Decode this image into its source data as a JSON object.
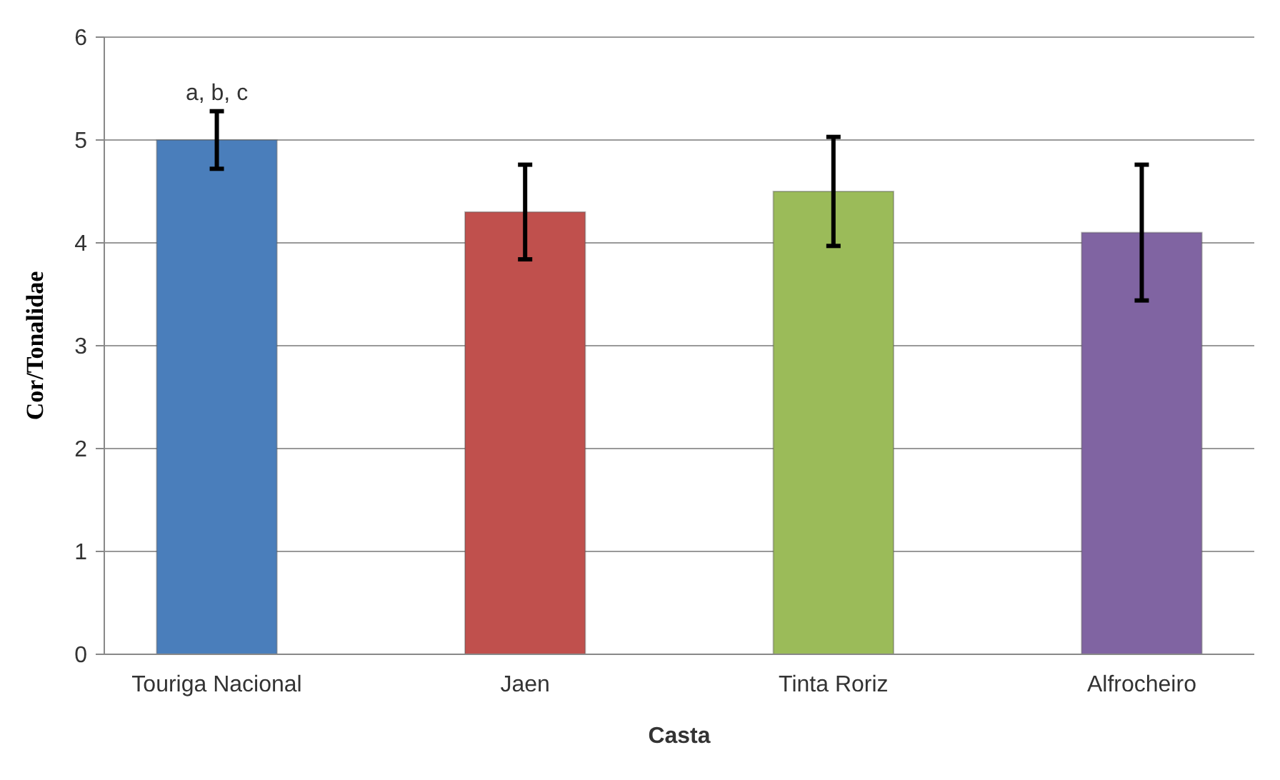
{
  "chart_data": {
    "type": "bar",
    "xlabel": "Casta",
    "ylabel": "Cor/Tonalidae",
    "categories": [
      "Touriga Nacional",
      "Jaen",
      "Tinta Roriz",
      "Alfrocheiro"
    ],
    "values": [
      5.0,
      4.3,
      4.5,
      4.1
    ],
    "colors": [
      "#4a7ebb",
      "#c0504d",
      "#9bbb59",
      "#8064a2"
    ],
    "errors": [
      0.28,
      0.46,
      0.53,
      0.66
    ],
    "ylim": [
      0,
      6
    ],
    "yticks": [
      0,
      1,
      2,
      3,
      4,
      5,
      6
    ],
    "grid": "y",
    "annotations": [
      {
        "text": "a, b, c",
        "x": "Touriga Nacional",
        "y": 5.28
      }
    ]
  }
}
